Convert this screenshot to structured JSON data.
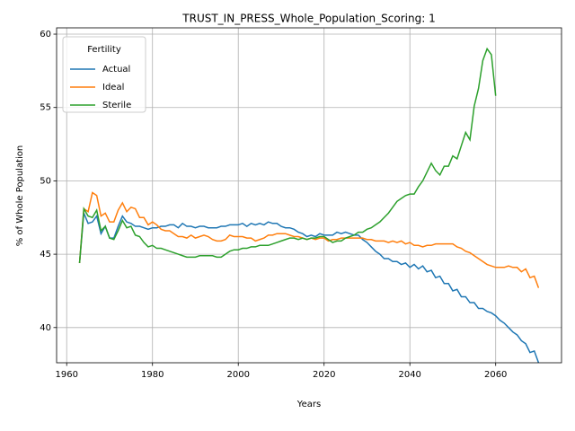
{
  "chart_data": {
    "type": "line",
    "title": "TRUST_IN_PRESS_Whole_Population_Scoring: 1",
    "xlabel": "Years",
    "ylabel": "% of Whole Population",
    "legend_title": "Fertility",
    "legend": "upper left",
    "grid": true,
    "x": [
      1963,
      1964,
      1965,
      1966,
      1967,
      1968,
      1969,
      1970,
      1971,
      1972,
      1973,
      1974,
      1975,
      1976,
      1977,
      1978,
      1979,
      1980,
      1981,
      1982,
      1983,
      1984,
      1985,
      1986,
      1987,
      1988,
      1989,
      1990,
      1991,
      1992,
      1993,
      1994,
      1995,
      1996,
      1997,
      1998,
      1999,
      2000,
      2001,
      2002,
      2003,
      2004,
      2005,
      2006,
      2007,
      2008,
      2009,
      2010,
      2011,
      2012,
      2013,
      2014,
      2015,
      2016,
      2017,
      2018,
      2019,
      2020,
      2021,
      2022,
      2023,
      2024,
      2025,
      2026,
      2027,
      2028,
      2029,
      2030,
      2031,
      2032,
      2033,
      2034,
      2035,
      2036,
      2037,
      2038,
      2039,
      2040,
      2041,
      2042,
      2043,
      2044,
      2045,
      2046,
      2047,
      2048,
      2049,
      2050,
      2051,
      2052,
      2053,
      2054,
      2055,
      2056,
      2057,
      2058,
      2059,
      2060,
      2061,
      2062,
      2063,
      2064,
      2065,
      2066,
      2067,
      2068,
      2069,
      2070
    ],
    "series": [
      {
        "name": "Actual",
        "color": "#1f77b4",
        "values": [
          44.4,
          47.8,
          47.1,
          47.2,
          47.6,
          46.4,
          46.9,
          46.1,
          46.1,
          46.9,
          47.6,
          47.2,
          47.1,
          46.9,
          46.9,
          46.8,
          46.7,
          46.8,
          46.8,
          46.9,
          46.9,
          47.0,
          47.0,
          46.8,
          47.1,
          46.9,
          46.9,
          46.8,
          46.9,
          46.9,
          46.8,
          46.8,
          46.8,
          46.9,
          46.9,
          47.0,
          47.0,
          47.0,
          47.1,
          46.9,
          47.1,
          47.0,
          47.1,
          47.0,
          47.2,
          47.1,
          47.1,
          46.9,
          46.8,
          46.8,
          46.7,
          46.5,
          46.4,
          46.2,
          46.3,
          46.2,
          46.4,
          46.3,
          46.3,
          46.3,
          46.5,
          46.4,
          46.5,
          46.4,
          46.3,
          46.3,
          46.0,
          45.8,
          45.5,
          45.2,
          45.0,
          44.7,
          44.7,
          44.5,
          44.5,
          44.3,
          44.4,
          44.1,
          44.3,
          44.0,
          44.2,
          43.8,
          43.9,
          43.4,
          43.5,
          43.0,
          43.0,
          42.5,
          42.6,
          42.1,
          42.1,
          41.7,
          41.7,
          41.3,
          41.3,
          41.1,
          41.0,
          40.8,
          40.5,
          40.3,
          40.0,
          39.7,
          39.5,
          39.1,
          38.9,
          38.3,
          38.4,
          37.6
        ]
      },
      {
        "name": "Ideal",
        "color": "#ff7f0e",
        "values": [
          44.4,
          48.1,
          47.9,
          49.2,
          49.0,
          47.6,
          47.8,
          47.2,
          47.2,
          48.0,
          48.5,
          47.9,
          48.2,
          48.1,
          47.5,
          47.5,
          47.0,
          47.2,
          47.0,
          46.7,
          46.6,
          46.6,
          46.4,
          46.2,
          46.2,
          46.1,
          46.3,
          46.1,
          46.2,
          46.3,
          46.2,
          46.0,
          45.9,
          45.9,
          46.0,
          46.3,
          46.2,
          46.2,
          46.2,
          46.1,
          46.1,
          45.9,
          46.0,
          46.1,
          46.3,
          46.3,
          46.4,
          46.4,
          46.4,
          46.3,
          46.2,
          46.2,
          46.1,
          46.0,
          46.1,
          46.0,
          46.1,
          46.1,
          45.9,
          46.0,
          46.0,
          46.1,
          46.1,
          46.1,
          46.1,
          46.1,
          46.1,
          46.0,
          46.0,
          45.9,
          45.9,
          45.9,
          45.8,
          45.9,
          45.8,
          45.9,
          45.7,
          45.8,
          45.6,
          45.6,
          45.5,
          45.6,
          45.6,
          45.7,
          45.7,
          45.7,
          45.7,
          45.7,
          45.5,
          45.4,
          45.2,
          45.1,
          44.9,
          44.7,
          44.5,
          44.3,
          44.2,
          44.1,
          44.1,
          44.1,
          44.2,
          44.1,
          44.1,
          43.8,
          44.0,
          43.4,
          43.5,
          42.7
        ]
      },
      {
        "name": "Sterile",
        "color": "#2ca02c",
        "values": [
          44.4,
          48.1,
          47.6,
          47.5,
          48.0,
          46.6,
          46.9,
          46.1,
          46.0,
          46.6,
          47.3,
          46.8,
          46.9,
          46.3,
          46.2,
          45.8,
          45.5,
          45.6,
          45.4,
          45.4,
          45.3,
          45.2,
          45.1,
          45.0,
          44.9,
          44.8,
          44.8,
          44.8,
          44.9,
          44.9,
          44.9,
          44.9,
          44.8,
          44.8,
          45.0,
          45.2,
          45.3,
          45.3,
          45.4,
          45.4,
          45.5,
          45.5,
          45.6,
          45.6,
          45.6,
          45.7,
          45.8,
          45.9,
          46.0,
          46.1,
          46.1,
          46.0,
          46.1,
          46.0,
          46.1,
          46.1,
          46.2,
          46.2,
          46.0,
          45.8,
          45.9,
          45.9,
          46.1,
          46.2,
          46.3,
          46.5,
          46.5,
          46.7,
          46.8,
          47.0,
          47.2,
          47.5,
          47.8,
          48.2,
          48.6,
          48.8,
          49.0,
          49.1,
          49.1,
          49.6,
          50.0,
          50.6,
          51.2,
          50.7,
          50.4,
          51.0,
          51.0,
          51.7,
          51.5,
          52.4,
          53.3,
          52.8,
          55.1,
          56.3,
          58.2,
          59.0,
          58.6,
          55.8,
          null,
          null,
          null,
          null,
          null,
          null,
          null,
          null,
          null,
          null
        ]
      }
    ],
    "xlim": [
      1957.65,
      2075.35
    ],
    "xticks": [
      1960,
      1980,
      2000,
      2020,
      2040,
      2060
    ],
    "ylim": [
      37.6,
      60.43
    ],
    "yticks": [
      40,
      45,
      50,
      55,
      60
    ]
  }
}
